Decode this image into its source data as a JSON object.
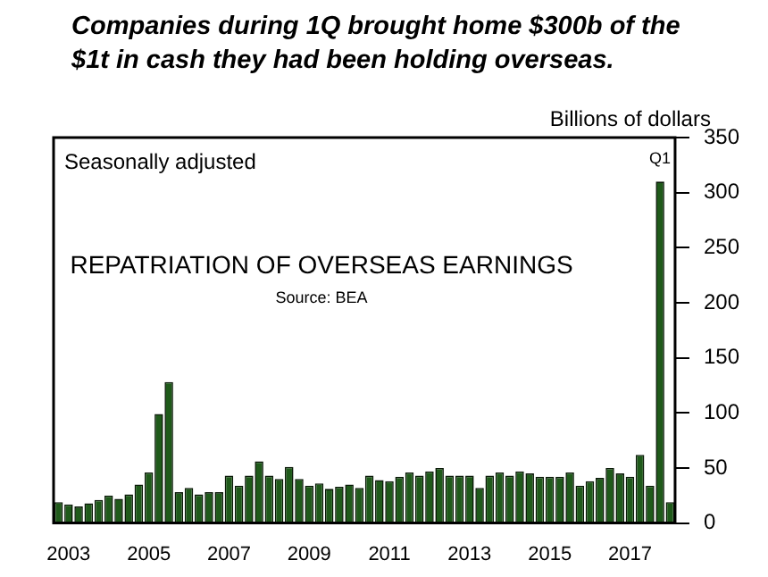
{
  "chart_data": {
    "type": "bar",
    "title": "Companies during 1Q brought home $300b of the $1t in cash they had been holding overseas.",
    "ylabel": "Billions of dollars",
    "categories": [
      null,
      "2003",
      null,
      null,
      null,
      null,
      null,
      null,
      null,
      "2005",
      null,
      null,
      null,
      null,
      null,
      null,
      null,
      "2007",
      null,
      null,
      null,
      null,
      null,
      null,
      null,
      "2009",
      null,
      null,
      null,
      null,
      null,
      null,
      null,
      "2011",
      null,
      null,
      null,
      null,
      null,
      null,
      null,
      "2013",
      null,
      null,
      null,
      null,
      null,
      null,
      null,
      "2015",
      null,
      null,
      null,
      null,
      null,
      null,
      null,
      "2017",
      null,
      null,
      null,
      null
    ],
    "values": [
      19,
      17,
      15,
      18,
      21,
      25,
      22,
      26,
      35,
      46,
      99,
      128,
      28,
      32,
      26,
      28,
      28,
      43,
      34,
      43,
      56,
      43,
      40,
      51,
      40,
      34,
      36,
      31,
      33,
      35,
      32,
      43,
      39,
      38,
      42,
      46,
      43,
      47,
      50,
      43,
      43,
      43,
      32,
      43,
      46,
      43,
      47,
      45,
      42,
      42,
      42,
      46,
      34,
      38,
      41,
      50,
      45,
      42,
      62,
      34,
      310,
      19
    ],
    "color": "#1f5a1a",
    "ylim": [
      0,
      350
    ],
    "yticks": [
      0,
      50,
      100,
      150,
      200,
      250,
      300,
      350
    ],
    "grid": false,
    "annotations": [
      "Seasonally adjusted",
      "REPATRIATION OF OVERSEAS EARNINGS",
      "Source: BEA",
      {
        "text": "Q1",
        "y": 310
      }
    ]
  }
}
